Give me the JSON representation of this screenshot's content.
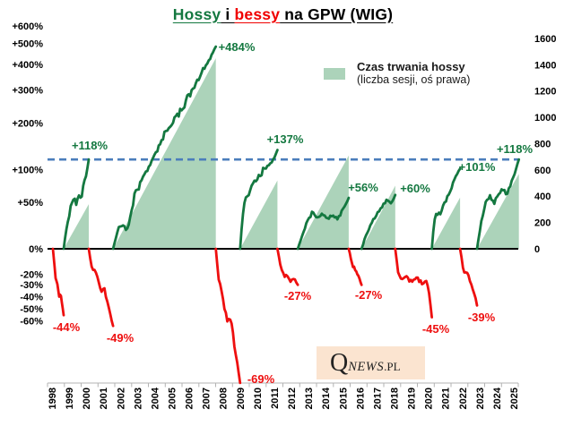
{
  "title": {
    "hossy": "Hossy",
    "i": " i ",
    "bessy": "bessy",
    "rest": " na GPW (WIG)"
  },
  "legend": {
    "title": "Czas trwania hossy",
    "subtitle": "(liczba sesji, oś prawa)"
  },
  "logo": {
    "q": "Q",
    "news": "NEWS",
    "pl": ".PL"
  },
  "colors": {
    "bull_line": "#147840",
    "bear_line": "#ee0f0f",
    "duration_fill": "#acd3ba",
    "reference_line": "#4b7ebc",
    "baseline": "#000000",
    "bottom_axis": "#b3b3b3",
    "axis_text": "#000000"
  },
  "chart_data": {
    "type": "line",
    "title": "Hossy i bessy na GPW (WIG)",
    "grid": false,
    "legend_position": "top-right",
    "left_axis": {
      "scale": "log",
      "format": "percent",
      "ticks": [
        600,
        500,
        400,
        300,
        200,
        100,
        50,
        0,
        -20,
        -30,
        -40,
        -50,
        -60
      ]
    },
    "right_axis": {
      "title": "liczba sesji",
      "ticks": [
        0,
        200,
        400,
        600,
        800,
        1000,
        1200,
        1400,
        1600
      ]
    },
    "years": [
      1998,
      1999,
      2000,
      2001,
      2002,
      2003,
      2004,
      2005,
      2006,
      2007,
      2008,
      2009,
      2010,
      2011,
      2012,
      2013,
      2014,
      2015,
      2016,
      2017,
      2018,
      2019,
      2020,
      2021,
      2022,
      2023,
      2024,
      2025
    ],
    "reference_line_pct": 118,
    "bull_markets": [
      {
        "start": 1998.68,
        "end": 2000.15,
        "gain_pct": 118,
        "label": "+118%",
        "sessions_approx": 340
      },
      {
        "start": 2001.57,
        "end": 2007.58,
        "gain_pct": 484,
        "label": "+484%",
        "sessions_approx": 1450
      },
      {
        "start": 2009.0,
        "end": 2011.18,
        "gain_pct": 137,
        "label": "+137%",
        "sessions_approx": 520
      },
      {
        "start": 2012.37,
        "end": 2015.35,
        "gain_pct": 56,
        "label": "+56%",
        "sessions_approx": 710
      },
      {
        "start": 2016.1,
        "end": 2018.07,
        "gain_pct": 60,
        "label": "+60%",
        "sessions_approx": 480
      },
      {
        "start": 2020.21,
        "end": 2021.86,
        "gain_pct": 101,
        "label": "+101%",
        "sessions_approx": 390
      },
      {
        "start": 2022.85,
        "end": 2025.3,
        "gain_pct": 118,
        "label": "+118%",
        "sessions_approx": 570
      }
    ],
    "bear_markets": [
      {
        "start": 1998.05,
        "end": 1998.68,
        "decline_pct": -44,
        "label": "-44%"
      },
      {
        "start": 2000.15,
        "end": 2001.57,
        "decline_pct": -49,
        "label": "-49%"
      },
      {
        "start": 2007.58,
        "end": 2009.0,
        "decline_pct": -69,
        "label": "-69%"
      },
      {
        "start": 2011.18,
        "end": 2012.37,
        "decline_pct": -27,
        "label": "-27%"
      },
      {
        "start": 2015.35,
        "end": 2016.1,
        "decline_pct": -27,
        "label": "-27%"
      },
      {
        "start": 2018.07,
        "end": 2020.21,
        "decline_pct": -45,
        "label": "-45%"
      },
      {
        "start": 2021.86,
        "end": 2022.85,
        "decline_pct": -39,
        "label": "-39%"
      }
    ]
  }
}
